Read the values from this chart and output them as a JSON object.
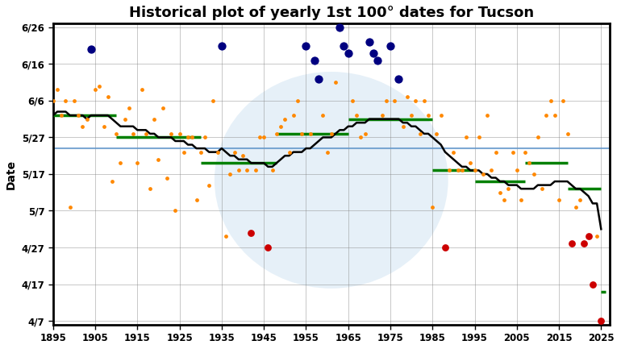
{
  "title": "Historical plot of yearly 1st 100° dates for Tucson",
  "ylabel": "Date",
  "xlim": [
    1895,
    2027
  ],
  "ylim": [
    96,
    178
  ],
  "ytick_labels": [
    "6/26",
    "6/16",
    "6/6",
    "5/27",
    "5/17",
    "5/7",
    "4/27",
    "4/17",
    "4/7"
  ],
  "ytick_values": [
    177,
    167,
    157,
    147,
    137,
    127,
    117,
    107,
    97
  ],
  "overall_mean_doy": 144,
  "background_color": "#ffffff",
  "scatter_data": [
    {
      "year": 1895,
      "doy": 157,
      "color": "orange"
    },
    {
      "year": 1896,
      "doy": 160,
      "color": "orange"
    },
    {
      "year": 1897,
      "doy": 153,
      "color": "orange"
    },
    {
      "year": 1898,
      "doy": 157,
      "color": "orange"
    },
    {
      "year": 1899,
      "doy": 128,
      "color": "orange"
    },
    {
      "year": 1900,
      "doy": 157,
      "color": "orange"
    },
    {
      "year": 1901,
      "doy": 153,
      "color": "orange"
    },
    {
      "year": 1902,
      "doy": 150,
      "color": "orange"
    },
    {
      "year": 1903,
      "doy": 152,
      "color": "orange"
    },
    {
      "year": 1904,
      "doy": 171,
      "color": "blue"
    },
    {
      "year": 1905,
      "doy": 160,
      "color": "orange"
    },
    {
      "year": 1906,
      "doy": 161,
      "color": "orange"
    },
    {
      "year": 1907,
      "doy": 150,
      "color": "orange"
    },
    {
      "year": 1908,
      "doy": 158,
      "color": "orange"
    },
    {
      "year": 1909,
      "doy": 135,
      "color": "orange"
    },
    {
      "year": 1910,
      "doy": 148,
      "color": "orange"
    },
    {
      "year": 1911,
      "doy": 140,
      "color": "orange"
    },
    {
      "year": 1912,
      "doy": 152,
      "color": "orange"
    },
    {
      "year": 1913,
      "doy": 155,
      "color": "orange"
    },
    {
      "year": 1914,
      "doy": 148,
      "color": "orange"
    },
    {
      "year": 1915,
      "doy": 140,
      "color": "orange"
    },
    {
      "year": 1916,
      "doy": 160,
      "color": "orange"
    },
    {
      "year": 1917,
      "doy": 148,
      "color": "orange"
    },
    {
      "year": 1918,
      "doy": 133,
      "color": "orange"
    },
    {
      "year": 1919,
      "doy": 152,
      "color": "orange"
    },
    {
      "year": 1920,
      "doy": 141,
      "color": "orange"
    },
    {
      "year": 1921,
      "doy": 155,
      "color": "orange"
    },
    {
      "year": 1922,
      "doy": 136,
      "color": "orange"
    },
    {
      "year": 1923,
      "doy": 148,
      "color": "orange"
    },
    {
      "year": 1924,
      "doy": 127,
      "color": "orange"
    },
    {
      "year": 1925,
      "doy": 148,
      "color": "orange"
    },
    {
      "year": 1926,
      "doy": 143,
      "color": "orange"
    },
    {
      "year": 1927,
      "doy": 147,
      "color": "orange"
    },
    {
      "year": 1928,
      "doy": 147,
      "color": "orange"
    },
    {
      "year": 1929,
      "doy": 130,
      "color": "orange"
    },
    {
      "year": 1930,
      "doy": 143,
      "color": "orange"
    },
    {
      "year": 1931,
      "doy": 147,
      "color": "orange"
    },
    {
      "year": 1932,
      "doy": 134,
      "color": "orange"
    },
    {
      "year": 1933,
      "doy": 157,
      "color": "orange"
    },
    {
      "year": 1934,
      "doy": 143,
      "color": "orange"
    },
    {
      "year": 1935,
      "doy": 172,
      "color": "blue"
    },
    {
      "year": 1936,
      "doy": 120,
      "color": "orange"
    },
    {
      "year": 1937,
      "doy": 137,
      "color": "orange"
    },
    {
      "year": 1938,
      "doy": 143,
      "color": "orange"
    },
    {
      "year": 1939,
      "doy": 138,
      "color": "orange"
    },
    {
      "year": 1940,
      "doy": 142,
      "color": "orange"
    },
    {
      "year": 1941,
      "doy": 138,
      "color": "orange"
    },
    {
      "year": 1942,
      "doy": 121,
      "color": "red"
    },
    {
      "year": 1943,
      "doy": 138,
      "color": "orange"
    },
    {
      "year": 1944,
      "doy": 147,
      "color": "orange"
    },
    {
      "year": 1945,
      "doy": 147,
      "color": "orange"
    },
    {
      "year": 1946,
      "doy": 117,
      "color": "red"
    },
    {
      "year": 1947,
      "doy": 138,
      "color": "orange"
    },
    {
      "year": 1948,
      "doy": 148,
      "color": "orange"
    },
    {
      "year": 1949,
      "doy": 150,
      "color": "orange"
    },
    {
      "year": 1950,
      "doy": 152,
      "color": "orange"
    },
    {
      "year": 1951,
      "doy": 143,
      "color": "orange"
    },
    {
      "year": 1952,
      "doy": 153,
      "color": "orange"
    },
    {
      "year": 1953,
      "doy": 157,
      "color": "orange"
    },
    {
      "year": 1954,
      "doy": 148,
      "color": "orange"
    },
    {
      "year": 1955,
      "doy": 172,
      "color": "blue"
    },
    {
      "year": 1956,
      "doy": 148,
      "color": "orange"
    },
    {
      "year": 1957,
      "doy": 168,
      "color": "blue"
    },
    {
      "year": 1958,
      "doy": 163,
      "color": "blue"
    },
    {
      "year": 1959,
      "doy": 153,
      "color": "orange"
    },
    {
      "year": 1960,
      "doy": 143,
      "color": "orange"
    },
    {
      "year": 1961,
      "doy": 148,
      "color": "orange"
    },
    {
      "year": 1962,
      "doy": 162,
      "color": "orange"
    },
    {
      "year": 1963,
      "doy": 177,
      "color": "blue"
    },
    {
      "year": 1964,
      "doy": 172,
      "color": "blue"
    },
    {
      "year": 1965,
      "doy": 170,
      "color": "blue"
    },
    {
      "year": 1966,
      "doy": 157,
      "color": "orange"
    },
    {
      "year": 1967,
      "doy": 153,
      "color": "orange"
    },
    {
      "year": 1968,
      "doy": 147,
      "color": "orange"
    },
    {
      "year": 1969,
      "doy": 148,
      "color": "orange"
    },
    {
      "year": 1970,
      "doy": 173,
      "color": "blue"
    },
    {
      "year": 1971,
      "doy": 170,
      "color": "blue"
    },
    {
      "year": 1972,
      "doy": 168,
      "color": "blue"
    },
    {
      "year": 1973,
      "doy": 153,
      "color": "orange"
    },
    {
      "year": 1974,
      "doy": 157,
      "color": "orange"
    },
    {
      "year": 1975,
      "doy": 172,
      "color": "blue"
    },
    {
      "year": 1976,
      "doy": 157,
      "color": "orange"
    },
    {
      "year": 1977,
      "doy": 163,
      "color": "blue"
    },
    {
      "year": 1978,
      "doy": 150,
      "color": "orange"
    },
    {
      "year": 1979,
      "doy": 158,
      "color": "orange"
    },
    {
      "year": 1980,
      "doy": 153,
      "color": "orange"
    },
    {
      "year": 1981,
      "doy": 157,
      "color": "orange"
    },
    {
      "year": 1982,
      "doy": 148,
      "color": "orange"
    },
    {
      "year": 1983,
      "doy": 157,
      "color": "orange"
    },
    {
      "year": 1984,
      "doy": 153,
      "color": "orange"
    },
    {
      "year": 1985,
      "doy": 128,
      "color": "orange"
    },
    {
      "year": 1986,
      "doy": 148,
      "color": "orange"
    },
    {
      "year": 1987,
      "doy": 153,
      "color": "orange"
    },
    {
      "year": 1988,
      "doy": 117,
      "color": "red"
    },
    {
      "year": 1989,
      "doy": 138,
      "color": "orange"
    },
    {
      "year": 1990,
      "doy": 143,
      "color": "orange"
    },
    {
      "year": 1991,
      "doy": 138,
      "color": "orange"
    },
    {
      "year": 1992,
      "doy": 138,
      "color": "orange"
    },
    {
      "year": 1993,
      "doy": 147,
      "color": "orange"
    },
    {
      "year": 1994,
      "doy": 140,
      "color": "orange"
    },
    {
      "year": 1995,
      "doy": 138,
      "color": "orange"
    },
    {
      "year": 1996,
      "doy": 147,
      "color": "orange"
    },
    {
      "year": 1997,
      "doy": 137,
      "color": "orange"
    },
    {
      "year": 1998,
      "doy": 153,
      "color": "orange"
    },
    {
      "year": 1999,
      "doy": 138,
      "color": "orange"
    },
    {
      "year": 2000,
      "doy": 143,
      "color": "orange"
    },
    {
      "year": 2001,
      "doy": 132,
      "color": "orange"
    },
    {
      "year": 2002,
      "doy": 130,
      "color": "orange"
    },
    {
      "year": 2003,
      "doy": 133,
      "color": "orange"
    },
    {
      "year": 2004,
      "doy": 143,
      "color": "orange"
    },
    {
      "year": 2005,
      "doy": 138,
      "color": "orange"
    },
    {
      "year": 2006,
      "doy": 130,
      "color": "orange"
    },
    {
      "year": 2007,
      "doy": 143,
      "color": "orange"
    },
    {
      "year": 2008,
      "doy": 140,
      "color": "orange"
    },
    {
      "year": 2009,
      "doy": 137,
      "color": "orange"
    },
    {
      "year": 2010,
      "doy": 147,
      "color": "orange"
    },
    {
      "year": 2011,
      "doy": 133,
      "color": "orange"
    },
    {
      "year": 2012,
      "doy": 153,
      "color": "orange"
    },
    {
      "year": 2013,
      "doy": 157,
      "color": "orange"
    },
    {
      "year": 2014,
      "doy": 153,
      "color": "orange"
    },
    {
      "year": 2015,
      "doy": 130,
      "color": "orange"
    },
    {
      "year": 2016,
      "doy": 157,
      "color": "orange"
    },
    {
      "year": 2017,
      "doy": 148,
      "color": "orange"
    },
    {
      "year": 2018,
      "doy": 118,
      "color": "red"
    },
    {
      "year": 2019,
      "doy": 128,
      "color": "orange"
    },
    {
      "year": 2020,
      "doy": 130,
      "color": "orange"
    },
    {
      "year": 2021,
      "doy": 118,
      "color": "red"
    },
    {
      "year": 2022,
      "doy": 120,
      "color": "red"
    },
    {
      "year": 2023,
      "doy": 107,
      "color": "red"
    },
    {
      "year": 2024,
      "doy": 120,
      "color": "orange"
    },
    {
      "year": 2025,
      "doy": 97,
      "color": "red"
    }
  ],
  "running_mean": [
    [
      1895,
      153
    ],
    [
      1896,
      154
    ],
    [
      1897,
      154
    ],
    [
      1898,
      154
    ],
    [
      1899,
      153
    ],
    [
      1900,
      153
    ],
    [
      1901,
      153
    ],
    [
      1902,
      153
    ],
    [
      1903,
      152
    ],
    [
      1904,
      153
    ],
    [
      1905,
      153
    ],
    [
      1906,
      153
    ],
    [
      1907,
      153
    ],
    [
      1908,
      153
    ],
    [
      1909,
      152
    ],
    [
      1910,
      151
    ],
    [
      1911,
      150
    ],
    [
      1912,
      150
    ],
    [
      1913,
      150
    ],
    [
      1914,
      150
    ],
    [
      1915,
      149
    ],
    [
      1916,
      149
    ],
    [
      1917,
      149
    ],
    [
      1918,
      148
    ],
    [
      1919,
      148
    ],
    [
      1920,
      147
    ],
    [
      1921,
      147
    ],
    [
      1922,
      147
    ],
    [
      1923,
      147
    ],
    [
      1924,
      146
    ],
    [
      1925,
      146
    ],
    [
      1926,
      146
    ],
    [
      1927,
      145
    ],
    [
      1928,
      145
    ],
    [
      1929,
      144
    ],
    [
      1930,
      144
    ],
    [
      1931,
      144
    ],
    [
      1932,
      143
    ],
    [
      1933,
      143
    ],
    [
      1934,
      143
    ],
    [
      1935,
      144
    ],
    [
      1936,
      143
    ],
    [
      1937,
      142
    ],
    [
      1938,
      142
    ],
    [
      1939,
      141
    ],
    [
      1940,
      141
    ],
    [
      1941,
      141
    ],
    [
      1942,
      140
    ],
    [
      1943,
      140
    ],
    [
      1944,
      140
    ],
    [
      1945,
      140
    ],
    [
      1946,
      139
    ],
    [
      1947,
      139
    ],
    [
      1948,
      140
    ],
    [
      1949,
      141
    ],
    [
      1950,
      142
    ],
    [
      1951,
      142
    ],
    [
      1952,
      143
    ],
    [
      1953,
      143
    ],
    [
      1954,
      143
    ],
    [
      1955,
      144
    ],
    [
      1956,
      144
    ],
    [
      1957,
      145
    ],
    [
      1958,
      146
    ],
    [
      1959,
      147
    ],
    [
      1960,
      147
    ],
    [
      1961,
      147
    ],
    [
      1962,
      148
    ],
    [
      1963,
      149
    ],
    [
      1964,
      149
    ],
    [
      1965,
      150
    ],
    [
      1966,
      150
    ],
    [
      1967,
      151
    ],
    [
      1968,
      151
    ],
    [
      1969,
      151
    ],
    [
      1970,
      152
    ],
    [
      1971,
      152
    ],
    [
      1972,
      152
    ],
    [
      1973,
      152
    ],
    [
      1974,
      152
    ],
    [
      1975,
      152
    ],
    [
      1976,
      152
    ],
    [
      1977,
      152
    ],
    [
      1978,
      151
    ],
    [
      1979,
      151
    ],
    [
      1980,
      150
    ],
    [
      1981,
      150
    ],
    [
      1982,
      149
    ],
    [
      1983,
      148
    ],
    [
      1984,
      148
    ],
    [
      1985,
      147
    ],
    [
      1986,
      146
    ],
    [
      1987,
      145
    ],
    [
      1988,
      143
    ],
    [
      1989,
      142
    ],
    [
      1990,
      141
    ],
    [
      1991,
      140
    ],
    [
      1992,
      139
    ],
    [
      1993,
      139
    ],
    [
      1994,
      138
    ],
    [
      1995,
      138
    ],
    [
      1996,
      138
    ],
    [
      1997,
      137
    ],
    [
      1998,
      137
    ],
    [
      1999,
      136
    ],
    [
      2000,
      136
    ],
    [
      2001,
      135
    ],
    [
      2002,
      135
    ],
    [
      2003,
      134
    ],
    [
      2004,
      134
    ],
    [
      2005,
      134
    ],
    [
      2006,
      133
    ],
    [
      2007,
      133
    ],
    [
      2008,
      133
    ],
    [
      2009,
      133
    ],
    [
      2010,
      134
    ],
    [
      2011,
      134
    ],
    [
      2012,
      134
    ],
    [
      2013,
      134
    ],
    [
      2014,
      135
    ],
    [
      2015,
      135
    ],
    [
      2016,
      135
    ],
    [
      2017,
      135
    ],
    [
      2018,
      134
    ],
    [
      2019,
      133
    ],
    [
      2020,
      133
    ],
    [
      2021,
      132
    ],
    [
      2022,
      131
    ],
    [
      2023,
      129
    ],
    [
      2024,
      129
    ],
    [
      2025,
      122
    ]
  ],
  "period_means": [
    {
      "x_start": 1895,
      "x_end": 1910,
      "mean_doy": 153
    },
    {
      "x_start": 1910,
      "x_end": 1930,
      "mean_doy": 147
    },
    {
      "x_start": 1930,
      "x_end": 1948,
      "mean_doy": 140
    },
    {
      "x_start": 1948,
      "x_end": 1965,
      "mean_doy": 148
    },
    {
      "x_start": 1965,
      "x_end": 1985,
      "mean_doy": 152
    },
    {
      "x_start": 1985,
      "x_end": 1995,
      "mean_doy": 138
    },
    {
      "x_start": 1995,
      "x_end": 2007,
      "mean_doy": 135
    },
    {
      "x_start": 2007,
      "x_end": 2017,
      "mean_doy": 140
    },
    {
      "x_start": 2017,
      "x_end": 2025,
      "mean_doy": 133
    },
    {
      "x_start": 2025,
      "x_end": 2026,
      "mean_doy": 105
    }
  ],
  "color_map": {
    "orange": "#FF8800",
    "blue": "#000080",
    "red": "#CC0000"
  },
  "size_map": {
    "orange": 12,
    "blue": 55,
    "red": 40
  }
}
